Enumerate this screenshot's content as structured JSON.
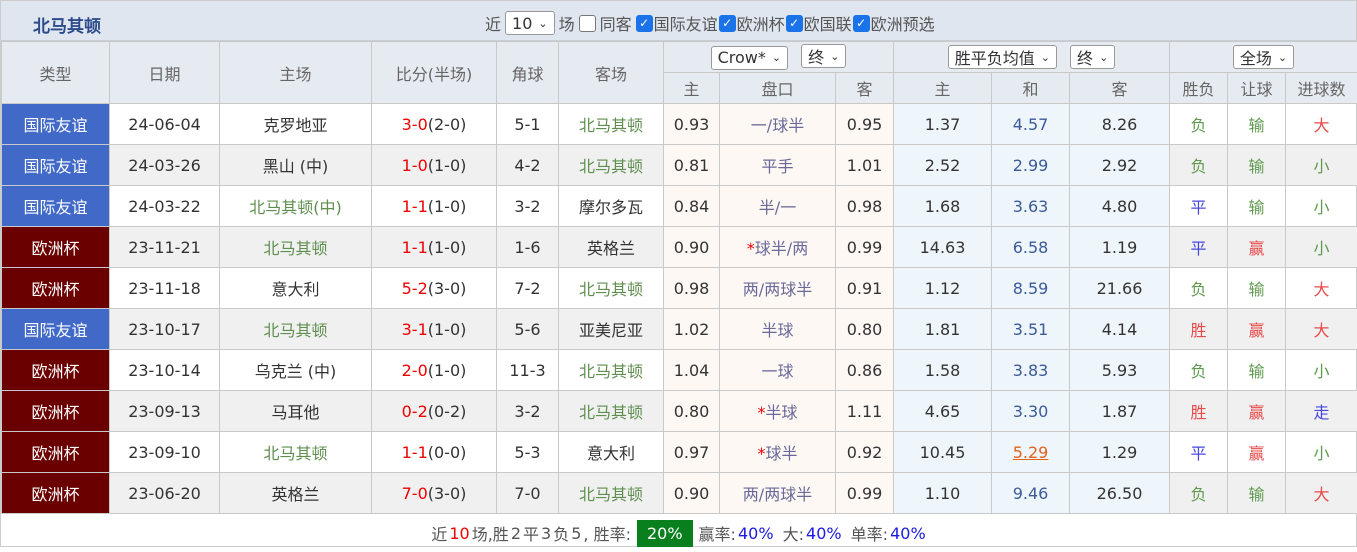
{
  "title": "北马其顿",
  "filters": {
    "near": "近",
    "count": "10",
    "unit": "场",
    "same_guest": "同客",
    "same_guest_checked": false,
    "leagues": [
      {
        "label": "国际友谊",
        "checked": true
      },
      {
        "label": "欧洲杯",
        "checked": true
      },
      {
        "label": "欧国联",
        "checked": true
      },
      {
        "label": "欧洲预选",
        "checked": true
      }
    ]
  },
  "headers": {
    "type": "类型",
    "date": "日期",
    "home": "主场",
    "score": "比分(半场)",
    "corner": "角球",
    "away": "客场",
    "company": "Crow*",
    "company_time": "终",
    "avg": "胜平负均值",
    "avg_time": "终",
    "scope": "全场",
    "sub": [
      "主",
      "盘口",
      "客",
      "主",
      "和",
      "客",
      "胜负",
      "让球",
      "进球数"
    ]
  },
  "colors": {
    "friendly": "#4169c8",
    "euro": "#6b0000",
    "win_rate_badge": "#0a7f1e"
  },
  "rows": [
    {
      "type": "国际友谊",
      "kind": "friendly",
      "date": "24-06-04",
      "home": "克罗地亚",
      "home_green": false,
      "score": "3-0",
      "half": "(2-0)",
      "corner": "5-1",
      "away": "北马其顿",
      "away_green": true,
      "o1": "0.93",
      "star": "",
      "hc": "一/球半",
      "o2": "0.95",
      "a1": "1.37",
      "a2": "4.57",
      "a3": "8.26",
      "r1": "负",
      "r2": "输",
      "r3": "大"
    },
    {
      "type": "国际友谊",
      "kind": "friendly",
      "date": "24-03-26",
      "home": "黑山 (中)",
      "home_green": false,
      "score": "1-0",
      "half": "(1-0)",
      "corner": "4-2",
      "away": "北马其顿",
      "away_green": true,
      "o1": "0.81",
      "star": "",
      "hc": "平手",
      "o2": "1.01",
      "a1": "2.52",
      "a2": "2.99",
      "a3": "2.92",
      "r1": "负",
      "r2": "输",
      "r3": "小"
    },
    {
      "type": "国际友谊",
      "kind": "friendly",
      "date": "24-03-22",
      "home": "北马其顿(中)",
      "home_green": true,
      "score": "1-1",
      "half": "(1-0)",
      "corner": "3-2",
      "away": "摩尔多瓦",
      "away_green": false,
      "o1": "0.84",
      "star": "",
      "hc": "半/一",
      "o2": "0.98",
      "a1": "1.68",
      "a2": "3.63",
      "a3": "4.80",
      "r1": "平",
      "r2": "输",
      "r3": "小"
    },
    {
      "type": "欧洲杯",
      "kind": "euro",
      "date": "23-11-21",
      "home": "北马其顿",
      "home_green": true,
      "score": "1-1",
      "half": "(1-0)",
      "corner": "1-6",
      "away": "英格兰",
      "away_green": false,
      "o1": "0.90",
      "star": "*",
      "hc": "球半/两",
      "o2": "0.99",
      "a1": "14.63",
      "a2": "6.58",
      "a3": "1.19",
      "r1": "平",
      "r2": "赢",
      "r3": "小"
    },
    {
      "type": "欧洲杯",
      "kind": "euro",
      "date": "23-11-18",
      "home": "意大利",
      "home_green": false,
      "score": "5-2",
      "half": "(3-0)",
      "corner": "7-2",
      "away": "北马其顿",
      "away_green": true,
      "o1": "0.98",
      "star": "",
      "hc": "两/两球半",
      "o2": "0.91",
      "a1": "1.12",
      "a2": "8.59",
      "a3": "21.66",
      "r1": "负",
      "r2": "输",
      "r3": "大"
    },
    {
      "type": "国际友谊",
      "kind": "friendly",
      "date": "23-10-17",
      "home": "北马其顿",
      "home_green": true,
      "score": "3-1",
      "half": "(1-0)",
      "corner": "5-6",
      "away": "亚美尼亚",
      "away_green": false,
      "o1": "1.02",
      "star": "",
      "hc": "半球",
      "o2": "0.80",
      "a1": "1.81",
      "a2": "3.51",
      "a3": "4.14",
      "r1": "胜",
      "r2": "赢",
      "r3": "大"
    },
    {
      "type": "欧洲杯",
      "kind": "euro",
      "date": "23-10-14",
      "home": "乌克兰 (中)",
      "home_green": false,
      "score": "2-0",
      "half": "(1-0)",
      "corner": "11-3",
      "away": "北马其顿",
      "away_green": true,
      "o1": "1.04",
      "star": "",
      "hc": "一球",
      "o2": "0.86",
      "a1": "1.58",
      "a2": "3.83",
      "a3": "5.93",
      "r1": "负",
      "r2": "输",
      "r3": "小"
    },
    {
      "type": "欧洲杯",
      "kind": "euro",
      "date": "23-09-13",
      "home": "马耳他",
      "home_green": false,
      "score": "0-2",
      "half": "(0-2)",
      "corner": "3-2",
      "away": "北马其顿",
      "away_green": true,
      "o1": "0.80",
      "star": "*",
      "hc": "半球",
      "o2": "1.11",
      "a1": "4.65",
      "a2": "3.30",
      "a3": "1.87",
      "r1": "胜",
      "r2": "赢",
      "r3": "走"
    },
    {
      "type": "欧洲杯",
      "kind": "euro",
      "date": "23-09-10",
      "home": "北马其顿",
      "home_green": true,
      "score": "1-1",
      "half": "(0-0)",
      "corner": "5-3",
      "away": "意大利",
      "away_green": false,
      "o1": "0.97",
      "star": "*",
      "hc": "球半",
      "o2": "0.92",
      "a1": "10.45",
      "a2": "5.29",
      "a2_highlight": true,
      "a3": "1.29",
      "r1": "平",
      "r2": "赢",
      "r3": "小"
    },
    {
      "type": "欧洲杯",
      "kind": "euro",
      "date": "23-06-20",
      "home": "英格兰",
      "home_green": false,
      "score": "7-0",
      "half": "(3-0)",
      "corner": "7-0",
      "away": "北马其顿",
      "away_green": true,
      "o1": "0.90",
      "star": "",
      "hc": "两/两球半",
      "o2": "0.99",
      "a1": "1.10",
      "a2": "9.46",
      "a3": "26.50",
      "r1": "负",
      "r2": "输",
      "r3": "大"
    }
  ],
  "summary": {
    "p1": "近",
    "n": "10",
    "p2": "场,胜",
    "w": "2",
    "p3": "平",
    "d": "3",
    "p4": "负",
    "l": "5",
    "p5": ", 胜率:",
    "win_rate": "20%",
    "p6": "赢率:",
    "win_pan": "40%",
    "p7": "大:",
    "big": "40%",
    "p8": "单率:",
    "odd": "40%"
  }
}
